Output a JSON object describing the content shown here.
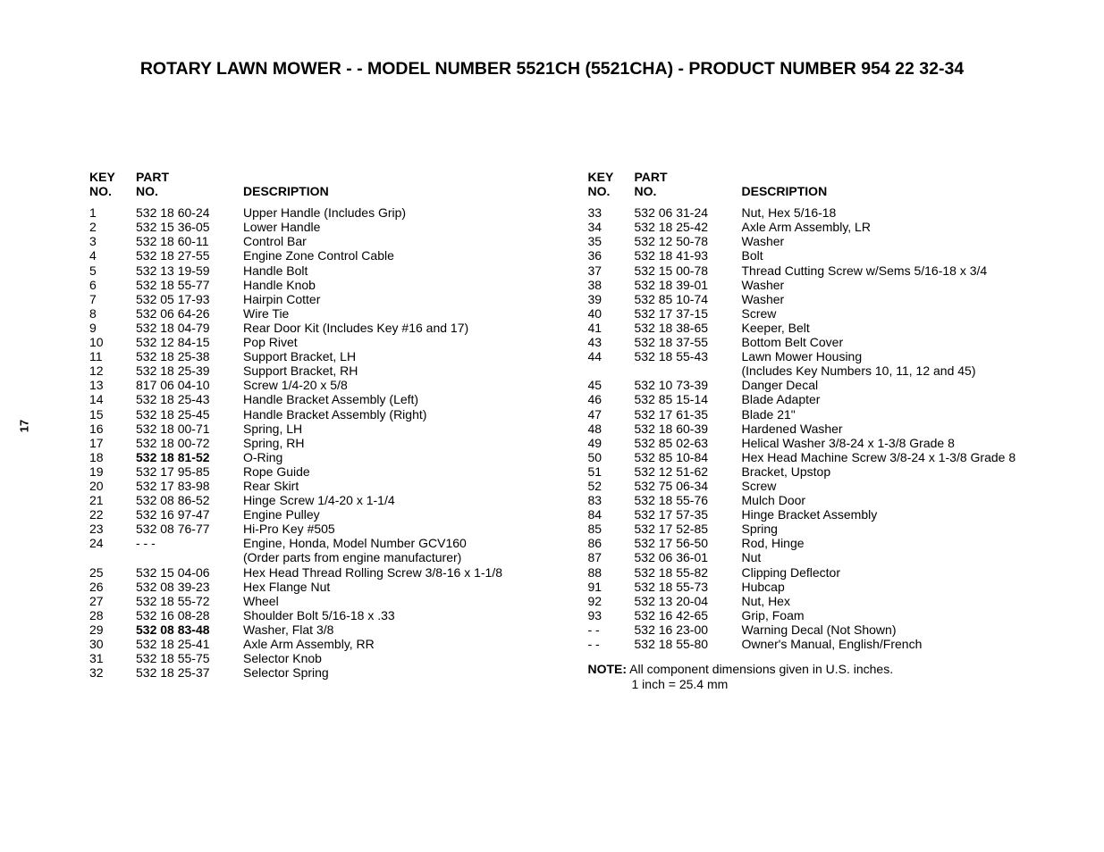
{
  "page_number": "17",
  "title": "ROTARY LAWN MOWER - - MODEL NUMBER 5521CH (5521CHA) - PRODUCT NUMBER 954 22 32-34",
  "headers": {
    "key_no_l1": "KEY",
    "key_no_l2": "NO.",
    "part_no_l1": "PART",
    "part_no_l2": "NO.",
    "description": "DESCRIPTION"
  },
  "left_rows": [
    {
      "key": "1",
      "part": "532 18 60-24",
      "desc": "Upper Handle (Includes Grip)"
    },
    {
      "key": "2",
      "part": "532 15 36-05",
      "desc": "Lower Handle"
    },
    {
      "key": "3",
      "part": "532 18 60-11",
      "desc": "Control Bar"
    },
    {
      "key": "4",
      "part": "532 18 27-55",
      "desc": "Engine Zone Control Cable"
    },
    {
      "key": "5",
      "part": "532 13 19-59",
      "desc": "Handle Bolt"
    },
    {
      "key": "6",
      "part": "532 18 55-77",
      "desc": "Handle Knob"
    },
    {
      "key": "7",
      "part": "532 05 17-93",
      "desc": "Hairpin Cotter"
    },
    {
      "key": "8",
      "part": "532 06 64-26",
      "desc": "Wire Tie"
    },
    {
      "key": "9",
      "part": "532 18 04-79",
      "desc": "Rear Door Kit (Includes Key #16 and 17)"
    },
    {
      "key": "10",
      "part": "532 12 84-15",
      "desc": "Pop Rivet"
    },
    {
      "key": "11",
      "part": "532 18 25-38",
      "desc": "Support Bracket, LH"
    },
    {
      "key": "12",
      "part": "532 18 25-39",
      "desc": "Support Bracket, RH"
    },
    {
      "key": "13",
      "part": "817 06 04-10",
      "desc": "Screw  1/4-20 x 5/8"
    },
    {
      "key": "14",
      "part": "532 18 25-43",
      "desc": "Handle Bracket Assembly (Left)"
    },
    {
      "key": "15",
      "part": "532 18 25-45",
      "desc": "Handle Bracket Assembly (Right)"
    },
    {
      "key": "16",
      "part": "532 18 00-71",
      "desc": "Spring, LH"
    },
    {
      "key": "17",
      "part": "532 18 00-72",
      "desc": "Spring, RH"
    },
    {
      "key": "18",
      "part": "532 18 81-52",
      "desc": "O-Ring",
      "bold": true
    },
    {
      "key": "19",
      "part": "532 17 95-85",
      "desc": "Rope Guide"
    },
    {
      "key": "20",
      "part": "532 17 83-98",
      "desc": "Rear Skirt"
    },
    {
      "key": "21",
      "part": "532 08 86-52",
      "desc": "Hinge Screw  1/4-20 x 1-1/4"
    },
    {
      "key": "22",
      "part": "532 16 97-47",
      "desc": "Engine Pulley"
    },
    {
      "key": "23",
      "part": "532 08 76-77",
      "desc": "Hi-Pro Key  #505"
    },
    {
      "key": "24",
      "part": "- - -",
      "desc": "Engine, Honda, Model Number GCV160",
      "desc2": "(Order parts from engine manufacturer)"
    },
    {
      "key": "25",
      "part": "532 15 04-06",
      "desc": "Hex Head Thread Rolling Screw  3/8-16 x 1-1/8"
    },
    {
      "key": "26",
      "part": "532 08 39-23",
      "desc": "Hex Flange Nut"
    },
    {
      "key": "27",
      "part": "532 18 55-72",
      "desc": "Wheel"
    },
    {
      "key": "28",
      "part": "532 16 08-28",
      "desc": "Shoulder Bolt  5/16-18 x .33"
    },
    {
      "key": "29",
      "part": "532 08 83-48",
      "desc": "Washer, Flat  3/8",
      "bold": true
    },
    {
      "key": "30",
      "part": "532 18 25-41",
      "desc": "Axle Arm Assembly, RR"
    },
    {
      "key": "31",
      "part": "532 18 55-75",
      "desc": "Selector Knob"
    },
    {
      "key": "32",
      "part": "532 18 25-37",
      "desc": "Selector Spring"
    }
  ],
  "right_rows": [
    {
      "key": "33",
      "part": "532 06 31-24",
      "desc": "Nut, Hex  5/16-18"
    },
    {
      "key": "34",
      "part": "532 18 25-42",
      "desc": "Axle Arm Assembly, LR"
    },
    {
      "key": "35",
      "part": "532 12 50-78",
      "desc": "Washer"
    },
    {
      "key": "36",
      "part": "532 18 41-93",
      "desc": "Bolt"
    },
    {
      "key": "37",
      "part": "532 15 00-78",
      "desc": "Thread Cutting Screw w/Sems  5/16-18 x 3/4"
    },
    {
      "key": "38",
      "part": "532 18 39-01",
      "desc": "Washer"
    },
    {
      "key": "39",
      "part": "532 85 10-74",
      "desc": "Washer"
    },
    {
      "key": "40",
      "part": "532 17 37-15",
      "desc": "Screw"
    },
    {
      "key": "41",
      "part": "532 18 38-65",
      "desc": "Keeper, Belt"
    },
    {
      "key": "43",
      "part": "532 18 37-55",
      "desc": "Bottom Belt Cover"
    },
    {
      "key": "44",
      "part": "532 18 55-43",
      "desc": "Lawn Mower Housing",
      "desc2": "(Includes Key Numbers 10, 11, 12 and 45)"
    },
    {
      "key": "45",
      "part": "532 10 73-39",
      "desc": "Danger Decal"
    },
    {
      "key": "46",
      "part": "532 85 15-14",
      "desc": "Blade Adapter"
    },
    {
      "key": "47",
      "part": "532 17 61-35",
      "desc": "Blade 21\""
    },
    {
      "key": "48",
      "part": "532 18 60-39",
      "desc": "Hardened Washer"
    },
    {
      "key": "49",
      "part": "532 85 02-63",
      "desc": "Helical Washer  3/8-24 x 1-3/8 Grade 8"
    },
    {
      "key": "50",
      "part": "532 85 10-84",
      "desc": "Hex Head Machine Screw  3/8-24 x 1-3/8 Grade 8"
    },
    {
      "key": "51",
      "part": "532 12 51-62",
      "desc": "Bracket, Upstop"
    },
    {
      "key": "52",
      "part": "532 75 06-34",
      "desc": "Screw"
    },
    {
      "key": "83",
      "part": "532 18 55-76",
      "desc": "Mulch Door"
    },
    {
      "key": "84",
      "part": "532 17 57-35",
      "desc": "Hinge Bracket Assembly"
    },
    {
      "key": "85",
      "part": "532 17 52-85",
      "desc": "Spring"
    },
    {
      "key": "86",
      "part": "532 17 56-50",
      "desc": "Rod, Hinge"
    },
    {
      "key": "87",
      "part": "532 06 36-01",
      "desc": "Nut"
    },
    {
      "key": "88",
      "part": "532 18 55-82",
      "desc": "Clipping Deflector"
    },
    {
      "key": "91",
      "part": "532 18 55-73",
      "desc": "Hubcap"
    },
    {
      "key": "92",
      "part": "532 13 20-04",
      "desc": "Nut, Hex"
    },
    {
      "key": "93",
      "part": "532 16 42-65",
      "desc": "Grip, Foam"
    },
    {
      "key": "- -",
      "part": "532 16 23-00",
      "desc": "Warning Decal (Not Shown)"
    },
    {
      "key": "- -",
      "part": "532 18 55-80",
      "desc": "Owner's Manual, English/French"
    }
  ],
  "note_label": "NOTE:",
  "note_text": " All component dimensions given in U.S. inches.",
  "note_sub": "1 inch = 25.4 mm"
}
